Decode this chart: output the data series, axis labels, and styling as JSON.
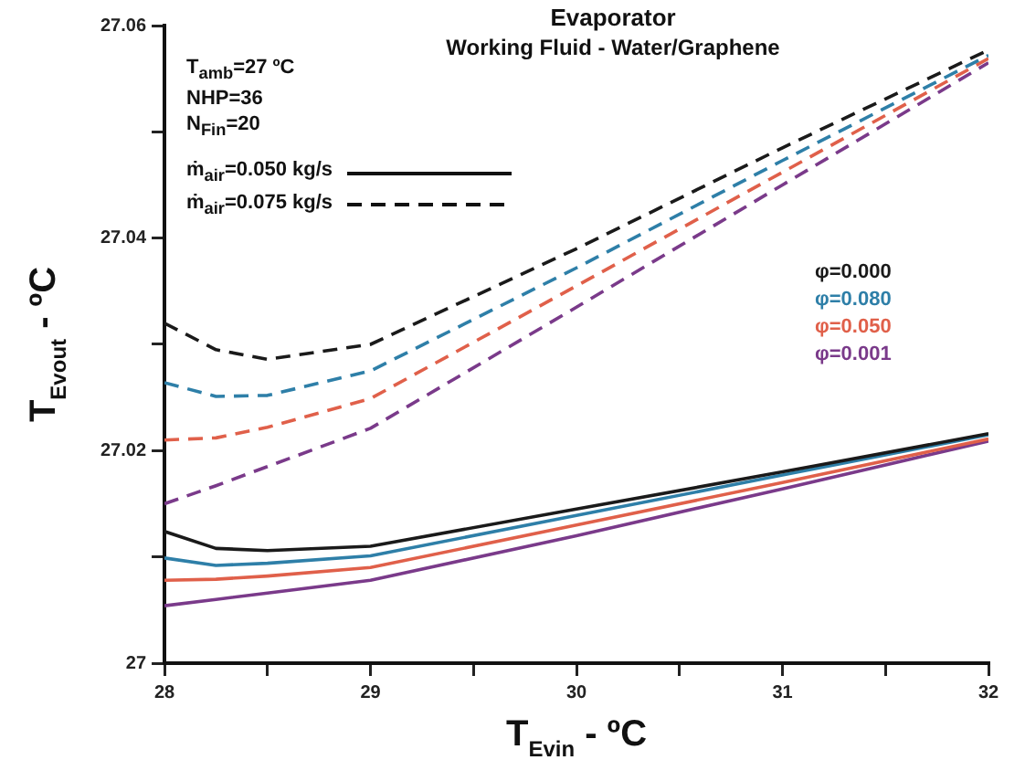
{
  "chart_data": {
    "type": "line",
    "title": "Evaporator",
    "subtitle": "Working Fluid - Water/Graphene",
    "xlabel": "T$_{Evin}$ - ºC",
    "ylabel": "T$_{Evout}$ - ºC",
    "annotations": [
      "T$_{amb}$=27 ºC",
      "NHP=36",
      "N$_{Fin}$=20",
      "ṁ$_{air}$=0.050 kg/s",
      "ṁ$_{air}$=0.075 kg/s"
    ],
    "x": [
      28,
      28.25,
      28.5,
      29,
      30,
      31,
      32
    ],
    "xlim": [
      28,
      32
    ],
    "xticks": [
      28,
      {
        "value": 28.5,
        "label": null
      },
      29,
      {
        "value": 29.5,
        "label": null
      },
      30,
      {
        "value": 30.5,
        "label": null
      },
      31,
      {
        "value": 31.5,
        "label": null
      },
      32
    ],
    "ylim": [
      27,
      27.06
    ],
    "yticks": [
      27,
      {
        "value": 27.01,
        "label": null
      },
      27.02,
      {
        "value": 27.03,
        "label": null
      },
      27.04,
      {
        "value": 27.05,
        "label": null
      },
      27.06
    ],
    "grid": false,
    "legend": "right",
    "marker": "none",
    "series": [
      {
        "name": "φ=0.000",
        "color": "#1a1a1a",
        "line_style": "solid",
        "values": [
          27.0124,
          27.0108,
          27.0106,
          27.011,
          27.0145,
          27.018,
          27.0216
        ]
      },
      {
        "name": "φ=0.080",
        "color": "#2e7fa8",
        "line_style": "solid",
        "values": [
          27.0099,
          27.0092,
          27.0094,
          27.0101,
          27.0139,
          27.0177,
          27.0215
        ]
      },
      {
        "name": "φ=0.050",
        "color": "#e0604a",
        "line_style": "solid",
        "values": [
          27.0078,
          27.0079,
          27.0082,
          27.009,
          27.013,
          27.017,
          27.0211
        ]
      },
      {
        "name": "φ=0.001",
        "color": "#7a3a8a",
        "line_style": "solid",
        "values": [
          27.0054,
          27.006,
          27.0066,
          27.0078,
          27.012,
          27.0164,
          27.0209
        ]
      },
      {
        "color": "#1a1a1a",
        "line_style": "dashed",
        "values": [
          27.032,
          27.0295,
          27.0286,
          27.03,
          27.039,
          27.0485,
          27.0577
        ]
      },
      {
        "color": "#2e7fa8",
        "line_style": "dashed",
        "values": [
          27.0264,
          27.0251,
          27.0252,
          27.0275,
          27.0372,
          27.0473,
          27.0572
        ]
      },
      {
        "color": "#e0604a",
        "line_style": "dashed",
        "values": [
          27.021,
          27.0212,
          27.0222,
          27.0249,
          27.0355,
          27.0462,
          27.0569
        ]
      },
      {
        "color": "#7a3a8a",
        "line_style": "dashed",
        "values": [
          27.015,
          27.0167,
          27.0185,
          27.0221,
          27.0335,
          27.045,
          27.0565
        ]
      }
    ]
  }
}
